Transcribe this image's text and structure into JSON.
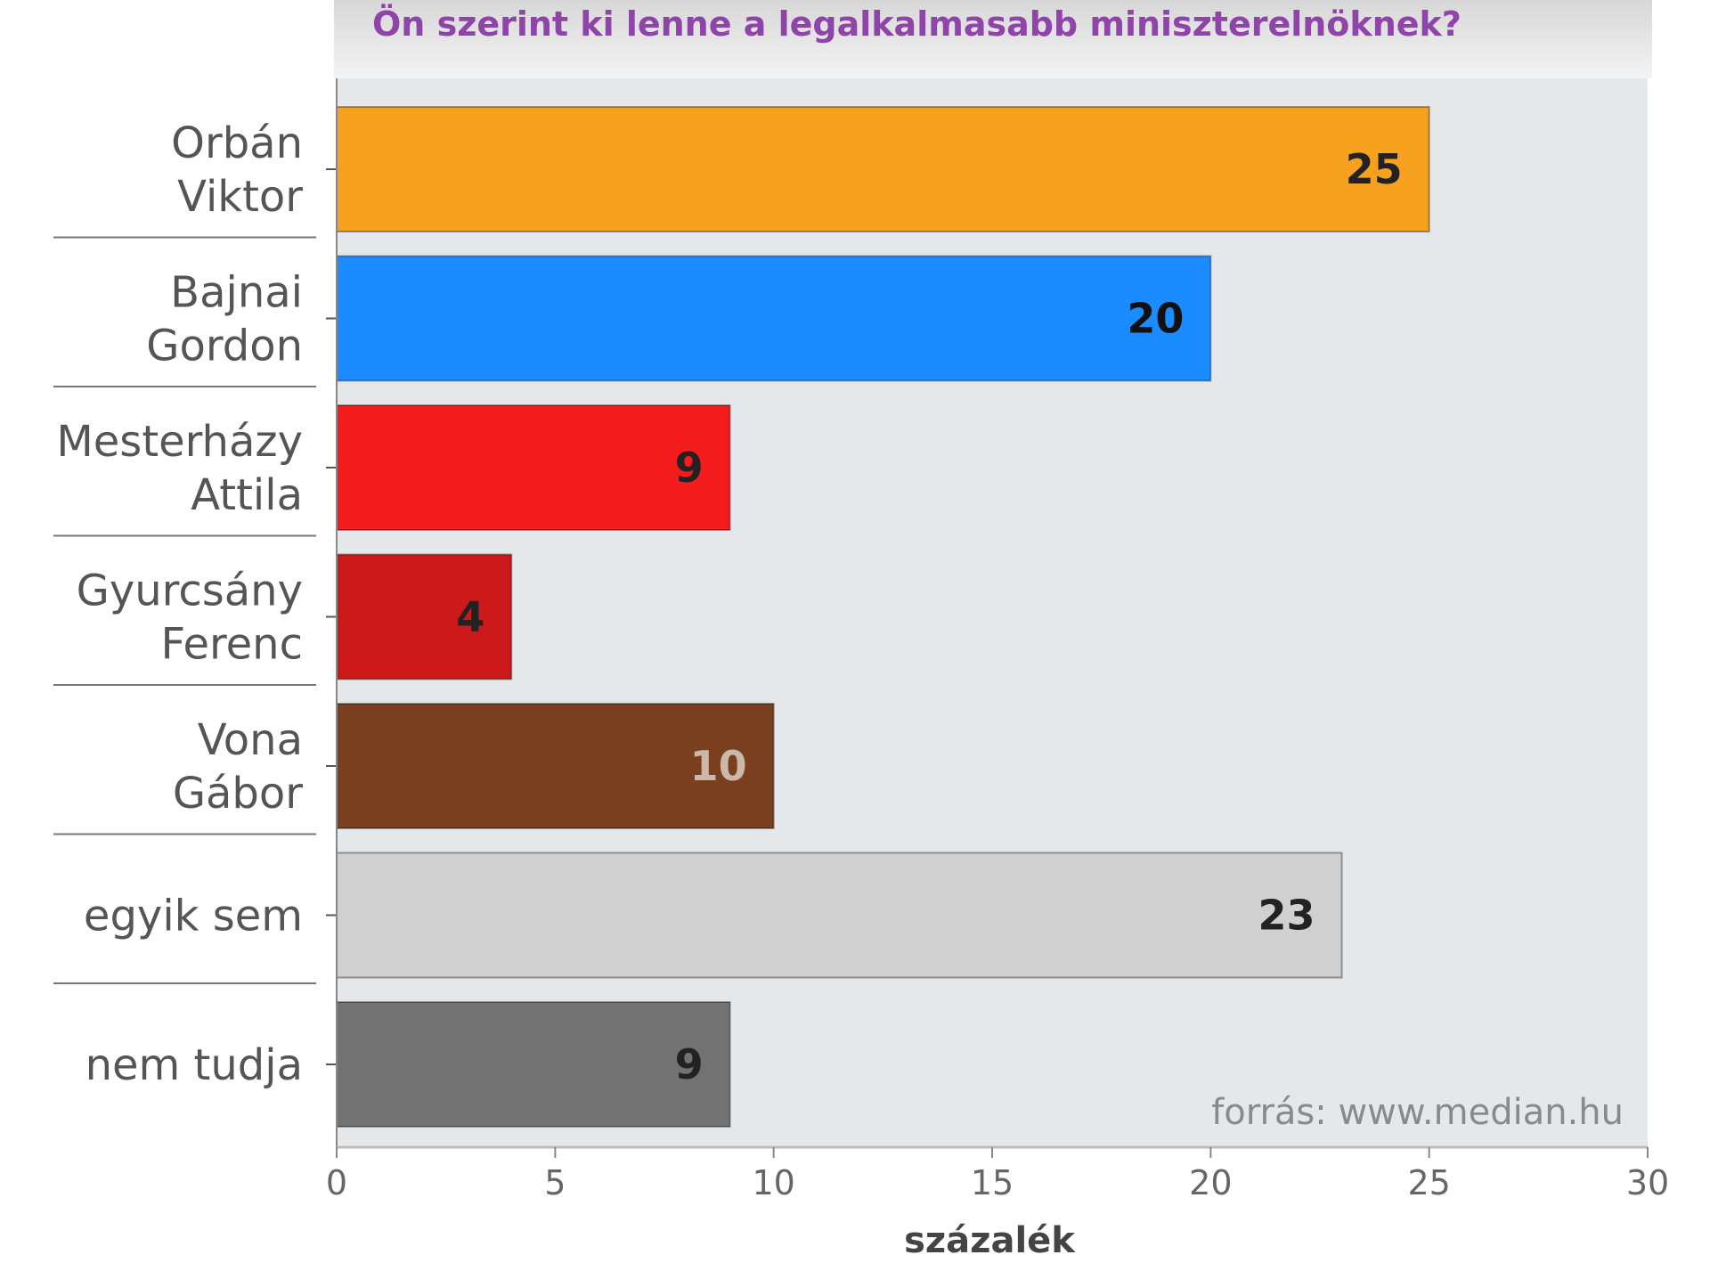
{
  "chart_data": {
    "type": "bar",
    "orientation": "horizontal",
    "title": "Ön szerint ki lenne a legalkalmasabb miniszterelnöknek?",
    "categories": [
      [
        "Orbán",
        "Viktor"
      ],
      [
        "Bajnai",
        "Gordon"
      ],
      [
        "Mesterházy",
        "Attila"
      ],
      [
        "Gyurcsány",
        "Ferenc"
      ],
      [
        "Vona",
        "Gábor"
      ],
      [
        "egyik sem"
      ],
      [
        "nem tudja"
      ]
    ],
    "values": [
      25,
      20,
      9,
      4,
      10,
      23,
      9
    ],
    "value_labels": [
      "25",
      "20",
      "9",
      "4",
      "10",
      "23",
      "9"
    ],
    "bar_colors": [
      "#f7a21e",
      "#1a8cff",
      "#f41c1c",
      "#cc1a1a",
      "#7a3f1e",
      "#d0d0d0",
      "#727272"
    ],
    "label_colors": [
      "#222222",
      "#111111",
      "#222222",
      "#222222",
      "#cbb8a8",
      "#222222",
      "#222222"
    ],
    "xlabel": "százalék",
    "ylabel": "",
    "xlim": [
      0,
      30
    ],
    "xticks": [
      0,
      5,
      10,
      15,
      20,
      25,
      30
    ],
    "grid": false,
    "legend": "none",
    "source": "forrás: www.median.hu",
    "plot_background": "#e5e8eb"
  }
}
